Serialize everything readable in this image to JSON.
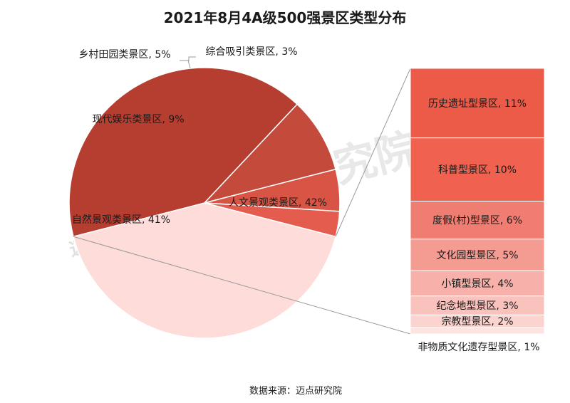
{
  "chart_data": {
    "type": "pie",
    "title": "2021年8月4A级500强景区类型分布",
    "source": "数据来源：迈点研究院",
    "watermark": "迈点研究院",
    "pie": {
      "slices": [
        {
          "label": "人文景观类景区, 42%",
          "value": 42,
          "color": "#fddcda"
        },
        {
          "label": "自然景观类景区, 41%",
          "value": 41,
          "color": "#b53e31"
        },
        {
          "label": "现代娱乐类景区, 9%",
          "value": 9,
          "color": "#c44a3b"
        },
        {
          "label": "乡村田园类景区, 5%",
          "value": 5,
          "color": "#d85546"
        },
        {
          "label": "综合吸引类景区, 3%",
          "value": 3,
          "color": "#e45c4d"
        }
      ]
    },
    "bar": {
      "parent": "人文景观类景区",
      "segments": [
        {
          "label": "历史遗址型景区, 11%",
          "value": 11,
          "color": "#ec5a48"
        },
        {
          "label": "科普型景区, 10%",
          "value": 10,
          "color": "#f0614f"
        },
        {
          "label": "度假(村)型景区, 6%",
          "value": 6,
          "color": "#f07d72"
        },
        {
          "label": "文化园型景区, 5%",
          "value": 5,
          "color": "#f49b92"
        },
        {
          "label": "小镇型景区, 4%",
          "value": 4,
          "color": "#f7b1aa"
        },
        {
          "label": "纪念地型景区, 3%",
          "value": 3,
          "color": "#f9c2bc"
        },
        {
          "label": "宗教型景区, 2%",
          "value": 2,
          "color": "#fbd3cf"
        },
        {
          "label": "非物质文化遗存型景区, 1%",
          "value": 1,
          "color": "#fde4e1"
        }
      ]
    }
  }
}
